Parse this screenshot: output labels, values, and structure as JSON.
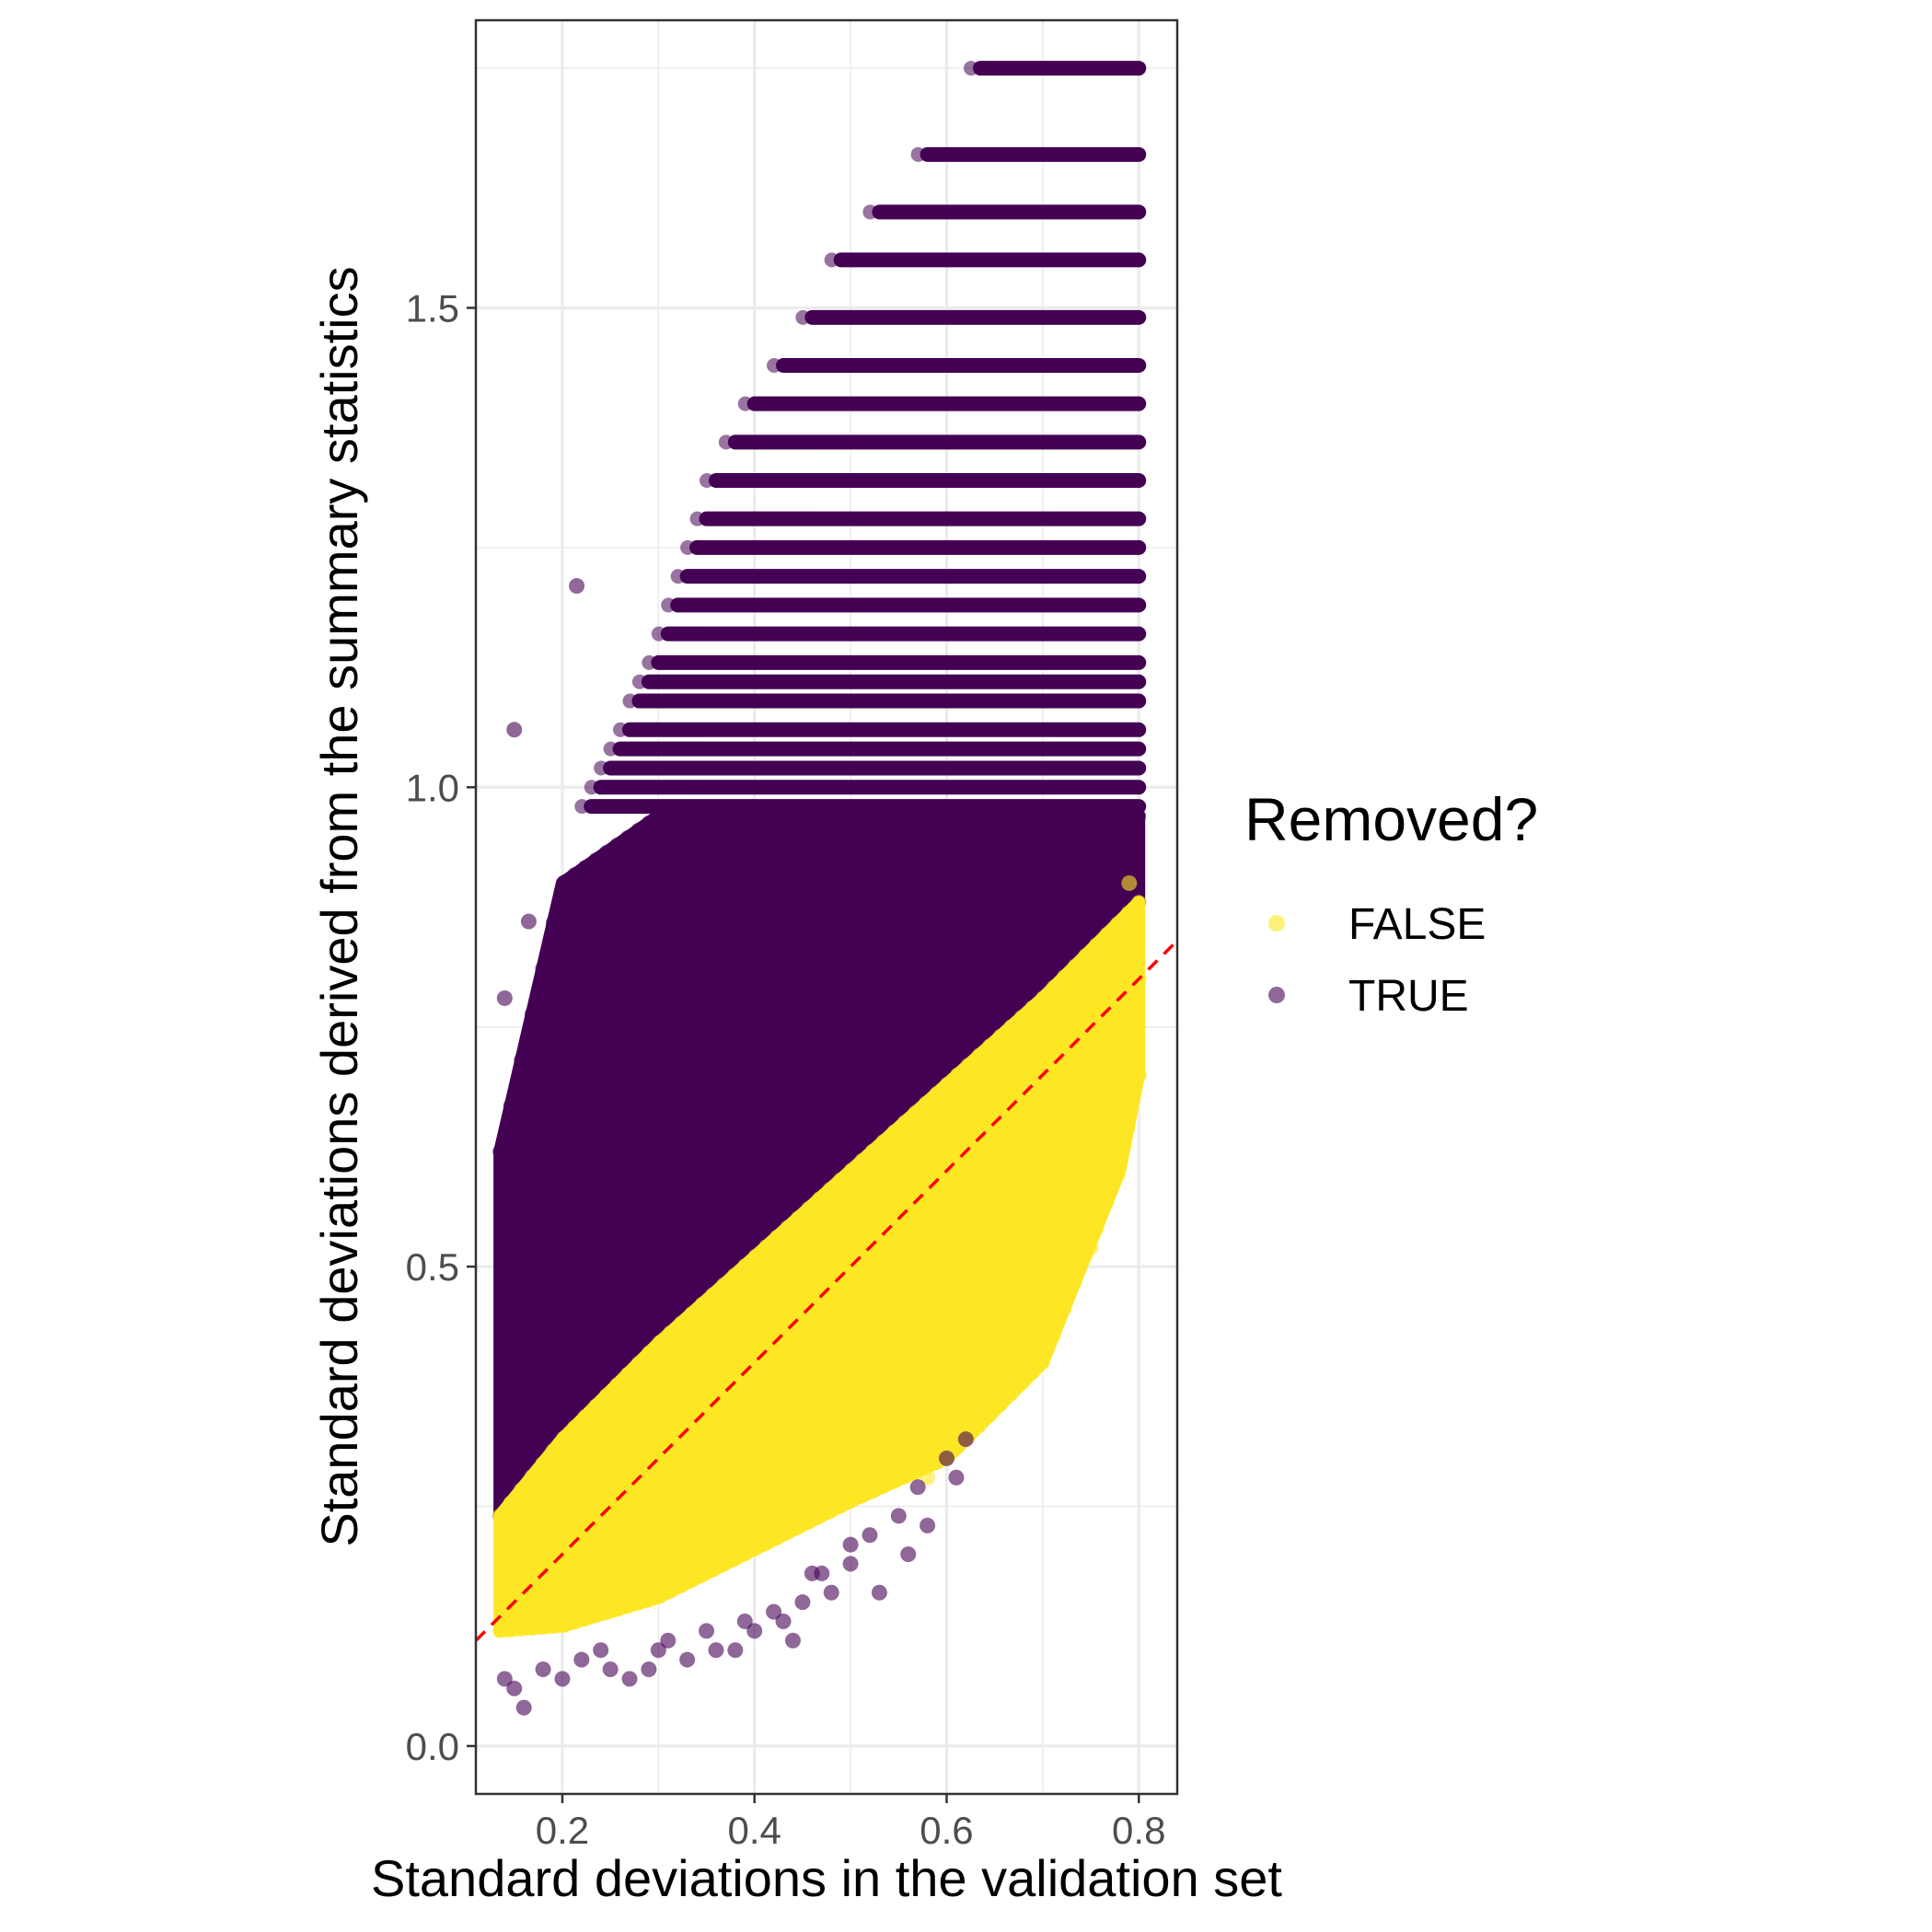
{
  "chart_data": {
    "type": "scatter",
    "title": "",
    "xlabel": "Standard deviations in the validation set",
    "ylabel": "Standard deviations derived from the summary statistics",
    "xlim": [
      0.11,
      0.84
    ],
    "ylim": [
      -0.05,
      1.8
    ],
    "x_ticks": [
      0.2,
      0.4,
      0.6,
      0.8
    ],
    "x_tick_labels": [
      "0.2",
      "0.4",
      "0.6",
      "0.8"
    ],
    "y_ticks": [
      0.0,
      0.5,
      1.0,
      1.5
    ],
    "y_tick_labels": [
      "0.0",
      "0.5",
      "1.0",
      "1.5"
    ],
    "grid": true,
    "reference_line": {
      "style": "dashed",
      "color": "#ff0000",
      "slope": 1,
      "intercept": 0
    },
    "legend": {
      "title": "Removed?",
      "position": "right",
      "entries": [
        {
          "label": "FALSE",
          "color": "#fde725"
        },
        {
          "label": "TRUE",
          "color": "#440154"
        }
      ]
    },
    "series": [
      {
        "name": "FALSE",
        "color": "#fde725",
        "region": {
          "x": [
            0.135,
            0.2,
            0.3,
            0.4,
            0.5,
            0.6,
            0.7,
            0.78,
            0.8
          ],
          "y_low": [
            0.12,
            0.125,
            0.155,
            0.205,
            0.255,
            0.3,
            0.4,
            0.6,
            0.7
          ],
          "y_high": [
            0.24,
            0.32,
            0.42,
            0.51,
            0.6,
            0.69,
            0.78,
            0.86,
            0.88
          ]
        },
        "points": [
          {
            "x": 0.63,
            "y": 0.34
          },
          {
            "x": 0.66,
            "y": 0.4
          },
          {
            "x": 0.68,
            "y": 0.45
          },
          {
            "x": 0.7,
            "y": 0.43
          },
          {
            "x": 0.72,
            "y": 0.46
          },
          {
            "x": 0.74,
            "y": 0.55
          },
          {
            "x": 0.75,
            "y": 0.52
          },
          {
            "x": 0.77,
            "y": 0.6
          },
          {
            "x": 0.79,
            "y": 0.66
          },
          {
            "x": 0.8,
            "y": 0.7
          },
          {
            "x": 0.8,
            "y": 0.8
          },
          {
            "x": 0.79,
            "y": 0.9
          },
          {
            "x": 0.785,
            "y": 0.86
          },
          {
            "x": 0.6,
            "y": 0.31
          },
          {
            "x": 0.58,
            "y": 0.28
          }
        ]
      },
      {
        "name": "TRUE",
        "color": "#440154",
        "region": {
          "x": [
            0.135,
            0.2,
            0.3,
            0.4,
            0.5,
            0.6,
            0.7,
            0.78,
            0.8
          ],
          "y_low": [
            0.24,
            0.32,
            0.42,
            0.51,
            0.6,
            0.69,
            0.78,
            0.86,
            0.88
          ],
          "y_high": [
            0.62,
            0.9,
            0.97,
            0.97,
            0.97,
            0.97,
            0.97,
            0.97,
            0.97
          ]
        },
        "stripes": [
          {
            "y": 1.75,
            "x_start": 0.635,
            "x_end": 0.8
          },
          {
            "y": 1.66,
            "x_start": 0.58,
            "x_end": 0.8
          },
          {
            "y": 1.6,
            "x_start": 0.53,
            "x_end": 0.8
          },
          {
            "y": 1.55,
            "x_start": 0.49,
            "x_end": 0.8
          },
          {
            "y": 1.49,
            "x_start": 0.46,
            "x_end": 0.8
          },
          {
            "y": 1.44,
            "x_start": 0.43,
            "x_end": 0.8
          },
          {
            "y": 1.4,
            "x_start": 0.4,
            "x_end": 0.8
          },
          {
            "y": 1.36,
            "x_start": 0.38,
            "x_end": 0.8
          },
          {
            "y": 1.32,
            "x_start": 0.36,
            "x_end": 0.8
          },
          {
            "y": 1.28,
            "x_start": 0.35,
            "x_end": 0.8
          },
          {
            "y": 1.25,
            "x_start": 0.34,
            "x_end": 0.8
          },
          {
            "y": 1.22,
            "x_start": 0.33,
            "x_end": 0.8
          },
          {
            "y": 1.19,
            "x_start": 0.32,
            "x_end": 0.8
          },
          {
            "y": 1.16,
            "x_start": 0.31,
            "x_end": 0.8
          },
          {
            "y": 1.13,
            "x_start": 0.3,
            "x_end": 0.8
          },
          {
            "y": 1.11,
            "x_start": 0.29,
            "x_end": 0.8
          },
          {
            "y": 1.09,
            "x_start": 0.28,
            "x_end": 0.8
          },
          {
            "y": 1.06,
            "x_start": 0.27,
            "x_end": 0.8
          },
          {
            "y": 1.04,
            "x_start": 0.26,
            "x_end": 0.8
          },
          {
            "y": 1.02,
            "x_start": 0.25,
            "x_end": 0.8
          },
          {
            "y": 1.0,
            "x_start": 0.24,
            "x_end": 0.8
          },
          {
            "y": 0.98,
            "x_start": 0.23,
            "x_end": 0.8
          }
        ],
        "points": [
          {
            "x": 0.15,
            "y": 1.06
          },
          {
            "x": 0.215,
            "y": 1.21
          },
          {
            "x": 0.14,
            "y": 0.78
          },
          {
            "x": 0.165,
            "y": 0.86
          },
          {
            "x": 0.15,
            "y": 0.06
          },
          {
            "x": 0.16,
            "y": 0.04
          },
          {
            "x": 0.14,
            "y": 0.07
          },
          {
            "x": 0.18,
            "y": 0.08
          },
          {
            "x": 0.2,
            "y": 0.07
          },
          {
            "x": 0.22,
            "y": 0.09
          },
          {
            "x": 0.25,
            "y": 0.08
          },
          {
            "x": 0.27,
            "y": 0.07
          },
          {
            "x": 0.3,
            "y": 0.1
          },
          {
            "x": 0.33,
            "y": 0.09
          },
          {
            "x": 0.36,
            "y": 0.1
          },
          {
            "x": 0.38,
            "y": 0.1
          },
          {
            "x": 0.4,
            "y": 0.12
          },
          {
            "x": 0.42,
            "y": 0.14
          },
          {
            "x": 0.45,
            "y": 0.15
          },
          {
            "x": 0.47,
            "y": 0.18
          },
          {
            "x": 0.5,
            "y": 0.19
          },
          {
            "x": 0.52,
            "y": 0.22
          },
          {
            "x": 0.55,
            "y": 0.24
          },
          {
            "x": 0.57,
            "y": 0.27
          },
          {
            "x": 0.6,
            "y": 0.3
          },
          {
            "x": 0.62,
            "y": 0.32
          },
          {
            "x": 0.48,
            "y": 0.16
          },
          {
            "x": 0.53,
            "y": 0.16
          },
          {
            "x": 0.46,
            "y": 0.18
          },
          {
            "x": 0.35,
            "y": 0.12
          },
          {
            "x": 0.29,
            "y": 0.08
          },
          {
            "x": 0.43,
            "y": 0.13
          },
          {
            "x": 0.58,
            "y": 0.23
          },
          {
            "x": 0.61,
            "y": 0.28
          },
          {
            "x": 0.56,
            "y": 0.2
          },
          {
            "x": 0.5,
            "y": 0.21
          },
          {
            "x": 0.44,
            "y": 0.11
          },
          {
            "x": 0.39,
            "y": 0.13
          },
          {
            "x": 0.24,
            "y": 0.1
          },
          {
            "x": 0.31,
            "y": 0.11
          }
        ]
      }
    ]
  }
}
